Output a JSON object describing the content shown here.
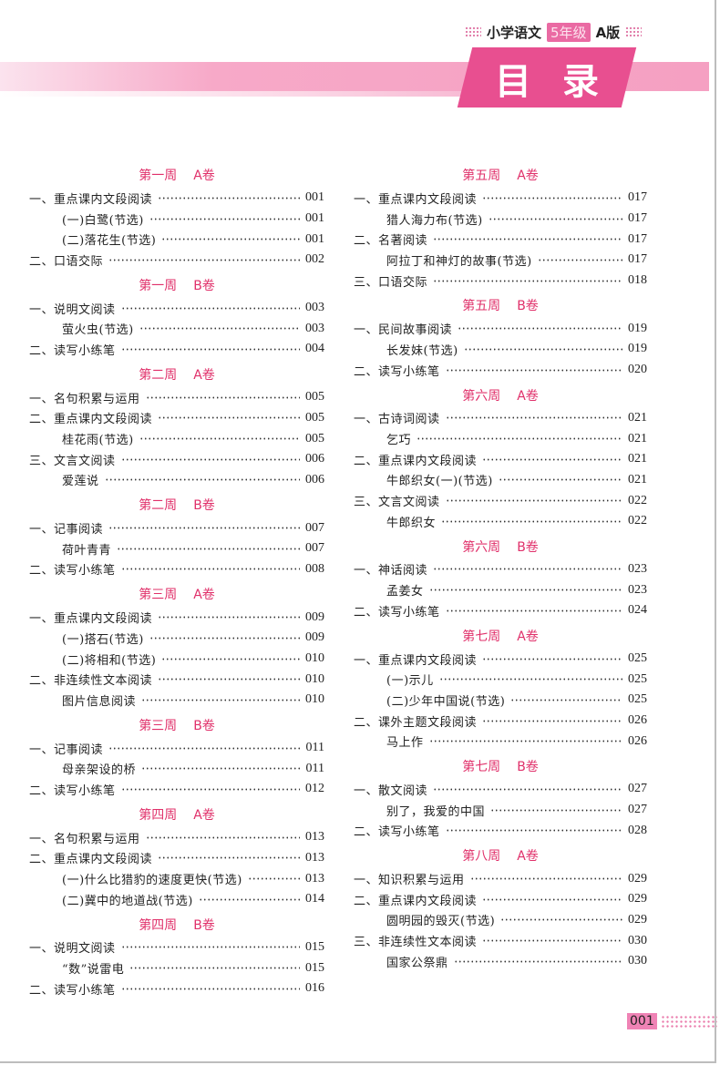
{
  "header": {
    "subject": "小学语文",
    "grade": "5年级",
    "edition": "A版",
    "title_chars": [
      "目",
      "录"
    ],
    "accent": "#e84f90",
    "section_color": "#e0306a"
  },
  "columns": [
    [
      {
        "week": "第一周",
        "vol": "A卷",
        "items": [
          [
            "一、重点课内文段阅读",
            "001",
            0
          ],
          [
            "(一)白鹭(节选)",
            "001",
            1
          ],
          [
            "(二)落花生(节选)",
            "001",
            1
          ],
          [
            "二、口语交际",
            "002",
            0
          ]
        ]
      },
      {
        "week": "第一周",
        "vol": "B卷",
        "items": [
          [
            "一、说明文阅读",
            "003",
            0
          ],
          [
            "萤火虫(节选)",
            "003",
            1
          ],
          [
            "二、读写小练笔",
            "004",
            0
          ]
        ]
      },
      {
        "week": "第二周",
        "vol": "A卷",
        "items": [
          [
            "一、名句积累与运用",
            "005",
            0
          ],
          [
            "二、重点课内文段阅读",
            "005",
            0
          ],
          [
            "桂花雨(节选)",
            "005",
            1
          ],
          [
            "三、文言文阅读",
            "006",
            0
          ],
          [
            "爱莲说",
            "006",
            1
          ]
        ]
      },
      {
        "week": "第二周",
        "vol": "B卷",
        "items": [
          [
            "一、记事阅读",
            "007",
            0
          ],
          [
            "荷叶青青",
            "007",
            1
          ],
          [
            "二、读写小练笔",
            "008",
            0
          ]
        ]
      },
      {
        "week": "第三周",
        "vol": "A卷",
        "items": [
          [
            "一、重点课内文段阅读",
            "009",
            0
          ],
          [
            "(一)搭石(节选)",
            "009",
            1
          ],
          [
            "(二)将相和(节选)",
            "010",
            1
          ],
          [
            "二、非连续性文本阅读",
            "010",
            0
          ],
          [
            "图片信息阅读",
            "010",
            1
          ]
        ]
      },
      {
        "week": "第三周",
        "vol": "B卷",
        "items": [
          [
            "一、记事阅读",
            "011",
            0
          ],
          [
            "母亲架设的桥",
            "011",
            1
          ],
          [
            "二、读写小练笔",
            "012",
            0
          ]
        ]
      },
      {
        "week": "第四周",
        "vol": "A卷",
        "items": [
          [
            "一、名句积累与运用",
            "013",
            0
          ],
          [
            "二、重点课内文段阅读",
            "013",
            0
          ],
          [
            "(一)什么比猎豹的速度更快(节选)",
            "013",
            1
          ],
          [
            "(二)冀中的地道战(节选)",
            "014",
            1
          ]
        ]
      },
      {
        "week": "第四周",
        "vol": "B卷",
        "items": [
          [
            "一、说明文阅读",
            "015",
            0
          ],
          [
            "“数”说雷电",
            "015",
            1
          ],
          [
            "二、读写小练笔",
            "016",
            0
          ]
        ]
      }
    ],
    [
      {
        "week": "第五周",
        "vol": "A卷",
        "items": [
          [
            "一、重点课内文段阅读",
            "017",
            0
          ],
          [
            "猎人海力布(节选)",
            "017",
            1
          ],
          [
            "二、名著阅读",
            "017",
            0
          ],
          [
            "阿拉丁和神灯的故事(节选)",
            "017",
            1
          ],
          [
            "三、口语交际",
            "018",
            0
          ]
        ]
      },
      {
        "week": "第五周",
        "vol": "B卷",
        "items": [
          [
            "一、民间故事阅读",
            "019",
            0
          ],
          [
            "长发妹(节选)",
            "019",
            1
          ],
          [
            "二、读写小练笔",
            "020",
            0
          ]
        ]
      },
      {
        "week": "第六周",
        "vol": "A卷",
        "items": [
          [
            "一、古诗词阅读",
            "021",
            0
          ],
          [
            "乞巧",
            "021",
            1
          ],
          [
            "二、重点课内文段阅读",
            "021",
            0
          ],
          [
            "牛郎织女(一)(节选)",
            "021",
            1
          ],
          [
            "三、文言文阅读",
            "022",
            0
          ],
          [
            "牛郎织女",
            "022",
            1
          ]
        ]
      },
      {
        "week": "第六周",
        "vol": "B卷",
        "items": [
          [
            "一、神话阅读",
            "023",
            0
          ],
          [
            "孟姜女",
            "023",
            1
          ],
          [
            "二、读写小练笔",
            "024",
            0
          ]
        ]
      },
      {
        "week": "第七周",
        "vol": "A卷",
        "items": [
          [
            "一、重点课内文段阅读",
            "025",
            0
          ],
          [
            "(一)示儿",
            "025",
            1
          ],
          [
            "(二)少年中国说(节选)",
            "025",
            1
          ],
          [
            "二、课外主题文段阅读",
            "026",
            0
          ],
          [
            "马上作",
            "026",
            1
          ]
        ]
      },
      {
        "week": "第七周",
        "vol": "B卷",
        "items": [
          [
            "一、散文阅读",
            "027",
            0
          ],
          [
            "别了，我爱的中国",
            "027",
            1
          ],
          [
            "二、读写小练笔",
            "028",
            0
          ]
        ]
      },
      {
        "week": "第八周",
        "vol": "A卷",
        "items": [
          [
            "一、知识积累与运用",
            "029",
            0
          ],
          [
            "二、重点课内文段阅读",
            "029",
            0
          ],
          [
            "圆明园的毁灭(节选)",
            "029",
            1
          ],
          [
            "三、非连续性文本阅读",
            "030",
            0
          ],
          [
            "国家公祭鼎",
            "030",
            1
          ]
        ]
      }
    ]
  ],
  "footer": {
    "page": "001"
  }
}
